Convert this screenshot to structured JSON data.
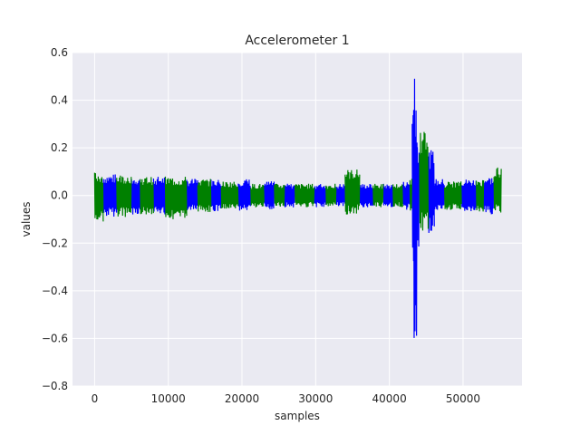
{
  "chart_data": {
    "type": "line",
    "title": "Accelerometer 1",
    "xlabel": "samples",
    "ylabel": "values",
    "xlim": [
      -3000,
      58000
    ],
    "ylim": [
      -0.8,
      0.6
    ],
    "xticks": [
      0,
      10000,
      20000,
      30000,
      40000,
      50000
    ],
    "xtick_labels": [
      "0",
      "10000",
      "20000",
      "30000",
      "40000",
      "50000"
    ],
    "yticks": [
      -0.8,
      -0.6,
      -0.4,
      -0.2,
      0.0,
      0.2,
      0.4,
      0.6
    ],
    "ytick_labels": [
      "−0.8",
      "−0.6",
      "−0.4",
      "−0.2",
      "0.0",
      "0.2",
      "0.4",
      "0.6"
    ],
    "grid": true,
    "background": "#eaeaf2",
    "series": [
      {
        "color": "#0000ff",
        "segments": [
          [
            1200,
            3000,
            0.09,
            -0.09
          ],
          [
            5000,
            6200,
            0.08,
            -0.08
          ],
          [
            8000,
            9600,
            0.08,
            -0.08
          ],
          [
            12500,
            14000,
            0.07,
            -0.07
          ],
          [
            15800,
            17200,
            0.07,
            -0.07
          ],
          [
            19500,
            21200,
            0.07,
            -0.07
          ],
          [
            23000,
            24400,
            0.06,
            -0.06
          ],
          [
            25800,
            27200,
            0.05,
            -0.05
          ],
          [
            29800,
            31400,
            0.05,
            -0.05
          ],
          [
            32800,
            34000,
            0.05,
            -0.05
          ],
          [
            36000,
            37800,
            0.05,
            -0.05
          ],
          [
            39200,
            40500,
            0.05,
            -0.05
          ],
          [
            41800,
            42800,
            0.06,
            -0.06
          ],
          [
            43100,
            43300,
            0.42,
            -0.35
          ],
          [
            43300,
            43500,
            0.59,
            -0.72
          ],
          [
            43500,
            43800,
            0.5,
            -0.74
          ],
          [
            43800,
            44100,
            0.25,
            -0.3
          ],
          [
            45300,
            46100,
            0.19,
            -0.16
          ],
          [
            46100,
            47500,
            0.07,
            -0.07
          ],
          [
            49800,
            51800,
            0.07,
            -0.07
          ],
          [
            52800,
            54200,
            0.08,
            -0.08
          ]
        ]
      },
      {
        "color": "#008000",
        "segments": [
          [
            0,
            1200,
            0.1,
            -0.11
          ],
          [
            3000,
            5000,
            0.09,
            -0.09
          ],
          [
            6200,
            8000,
            0.08,
            -0.08
          ],
          [
            9600,
            12500,
            0.08,
            -0.1
          ],
          [
            14000,
            15800,
            0.07,
            -0.07
          ],
          [
            17200,
            19500,
            0.06,
            -0.06
          ],
          [
            21200,
            23000,
            0.05,
            -0.05
          ],
          [
            24400,
            25800,
            0.05,
            -0.05
          ],
          [
            27200,
            29800,
            0.05,
            -0.05
          ],
          [
            31400,
            32800,
            0.05,
            -0.05
          ],
          [
            34000,
            36000,
            0.11,
            -0.08
          ],
          [
            37800,
            39200,
            0.05,
            -0.05
          ],
          [
            40500,
            41800,
            0.05,
            -0.05
          ],
          [
            42800,
            43100,
            0.07,
            -0.07
          ],
          [
            44100,
            45300,
            0.27,
            -0.17
          ],
          [
            47500,
            49800,
            0.06,
            -0.06
          ],
          [
            51800,
            52800,
            0.07,
            -0.07
          ],
          [
            54200,
            55200,
            0.12,
            -0.08
          ]
        ]
      }
    ]
  }
}
